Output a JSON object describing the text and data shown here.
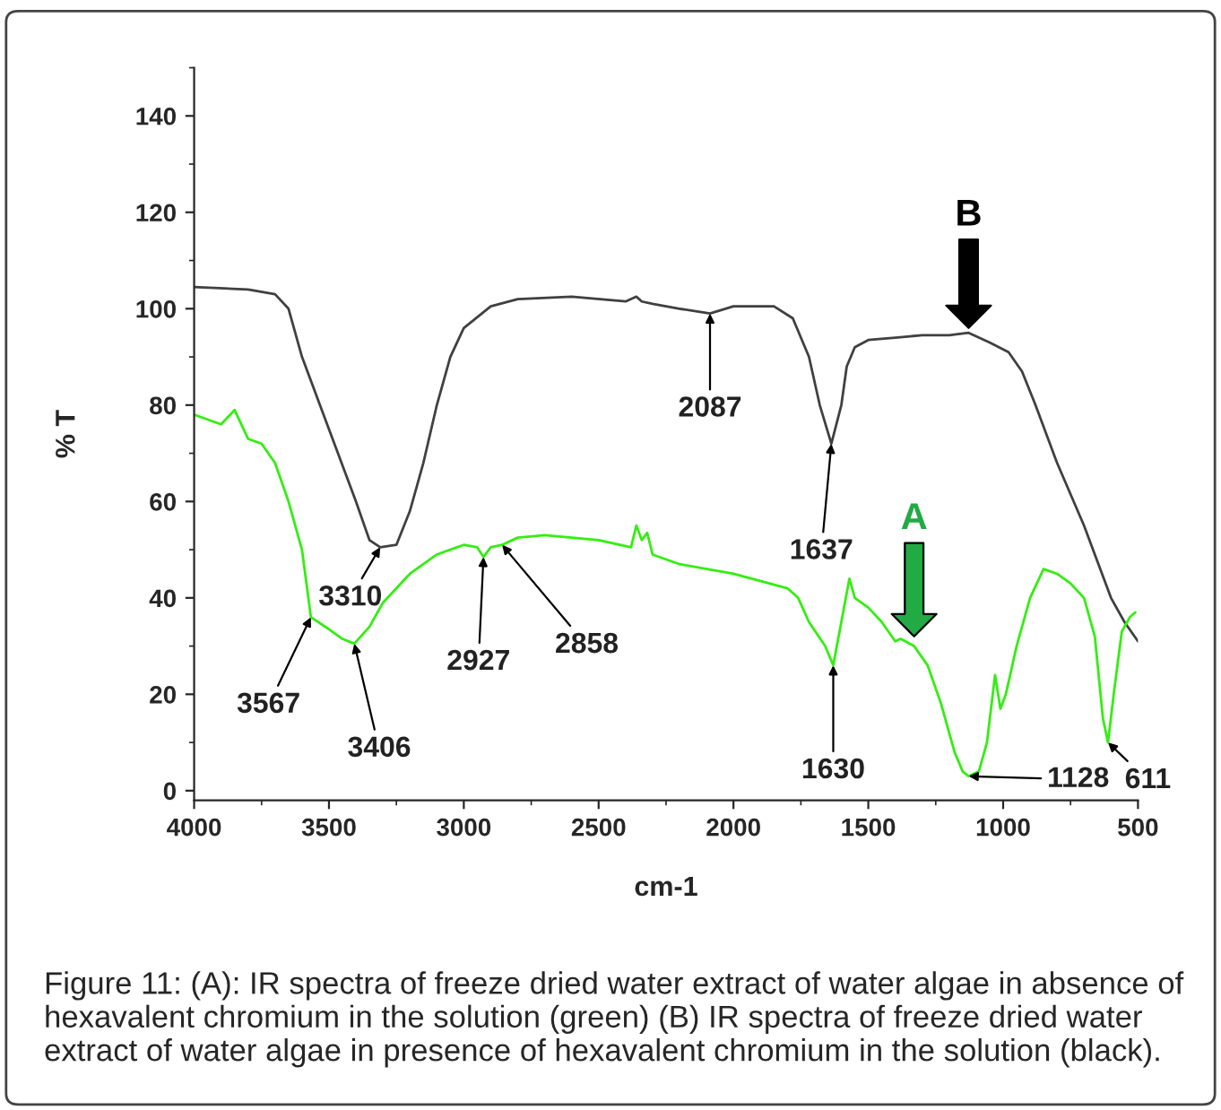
{
  "chart_data": {
    "type": "line",
    "xlabel": "cm-1",
    "ylabel": "% T",
    "xlim": [
      4000,
      500
    ],
    "xticks": [
      4000,
      3500,
      3000,
      2500,
      2000,
      1500,
      1000,
      500
    ],
    "ylim": [
      -2,
      150
    ],
    "yticks": [
      0,
      20,
      40,
      60,
      80,
      100,
      120,
      140
    ],
    "grid": false,
    "marker": "none",
    "line_style": "solid",
    "series": [
      {
        "color": "#404040",
        "x": [
          4000,
          3800,
          3700,
          3650,
          3600,
          3500,
          3400,
          3350,
          3310,
          3250,
          3200,
          3150,
          3100,
          3050,
          3000,
          2900,
          2800,
          2600,
          2400,
          2360,
          2340,
          2300,
          2200,
          2087,
          2000,
          1850,
          1780,
          1720,
          1680,
          1637,
          1600,
          1580,
          1550,
          1500,
          1400,
          1300,
          1200,
          1128,
          1050,
          980,
          930,
          880,
          800,
          700,
          600,
          550,
          500
        ],
        "values": [
          104.5,
          104,
          103,
          100,
          90,
          75,
          60,
          52,
          50.5,
          51,
          58,
          68,
          80,
          90,
          96,
          100.5,
          102,
          102.5,
          101.5,
          102.5,
          101.5,
          101,
          100,
          99,
          100.5,
          100.5,
          98,
          90,
          80,
          72,
          80,
          88,
          92,
          93.5,
          94,
          94.5,
          94.5,
          95,
          93,
          91,
          87,
          80,
          68,
          55,
          40,
          35,
          31
        ]
      },
      {
        "color": "#33ee11",
        "x": [
          4000,
          3900,
          3850,
          3800,
          3750,
          3700,
          3650,
          3600,
          3567,
          3500,
          3450,
          3406,
          3350,
          3300,
          3200,
          3100,
          3000,
          2950,
          2927,
          2900,
          2858,
          2800,
          2700,
          2500,
          2380,
          2360,
          2340,
          2320,
          2300,
          2200,
          2000,
          1800,
          1760,
          1720,
          1660,
          1630,
          1600,
          1570,
          1550,
          1500,
          1450,
          1400,
          1380,
          1330,
          1280,
          1230,
          1180,
          1150,
          1128,
          1090,
          1060,
          1030,
          1010,
          990,
          950,
          900,
          850,
          800,
          750,
          700,
          660,
          630,
          611,
          590,
          560,
          530,
          510
        ],
        "values": [
          78,
          76,
          79,
          73,
          72,
          68,
          60,
          50,
          36,
          33.5,
          31.5,
          30.5,
          34,
          39,
          45,
          49,
          51,
          50.5,
          48.5,
          50.5,
          51,
          52.5,
          53,
          52,
          50.5,
          55,
          52,
          53.5,
          49,
          47,
          45,
          42,
          40,
          35,
          30,
          26,
          35,
          44,
          40,
          38,
          35,
          31,
          31.5,
          30,
          26,
          18,
          8,
          4,
          3,
          4,
          10,
          24,
          17,
          20,
          30,
          40,
          46,
          45,
          43,
          40,
          32,
          15,
          10,
          20,
          33,
          36,
          37
        ]
      }
    ],
    "annotations": [
      {
        "text": "3310",
        "x": 3310,
        "y": 50.5
      },
      {
        "text": "2087",
        "x": 2087,
        "y": 99
      },
      {
        "text": "1637",
        "x": 1637,
        "y": 72
      },
      {
        "text": "3567",
        "x": 3567,
        "y": 36
      },
      {
        "text": "3406",
        "x": 3406,
        "y": 30.5
      },
      {
        "text": "2927",
        "x": 2927,
        "y": 48.5
      },
      {
        "text": "2858",
        "x": 2858,
        "y": 51
      },
      {
        "text": "1630",
        "x": 1630,
        "y": 26
      },
      {
        "text": "1128",
        "x": 1128,
        "y": 3
      },
      {
        "text": "611",
        "x": 611,
        "y": 10
      },
      {
        "text": "B",
        "x": 1128,
        "y": 96
      },
      {
        "text": "A",
        "x": 1330,
        "y": 32
      },
      "Figure 11: (A): IR spectra of freeze dried water extract of water algae in absence of hexavalent chromium in the solution (green) (B) IR spectra of freeze dried water extract of water algae in presence of hexavalent chromium in the solution (black)."
    ]
  }
}
